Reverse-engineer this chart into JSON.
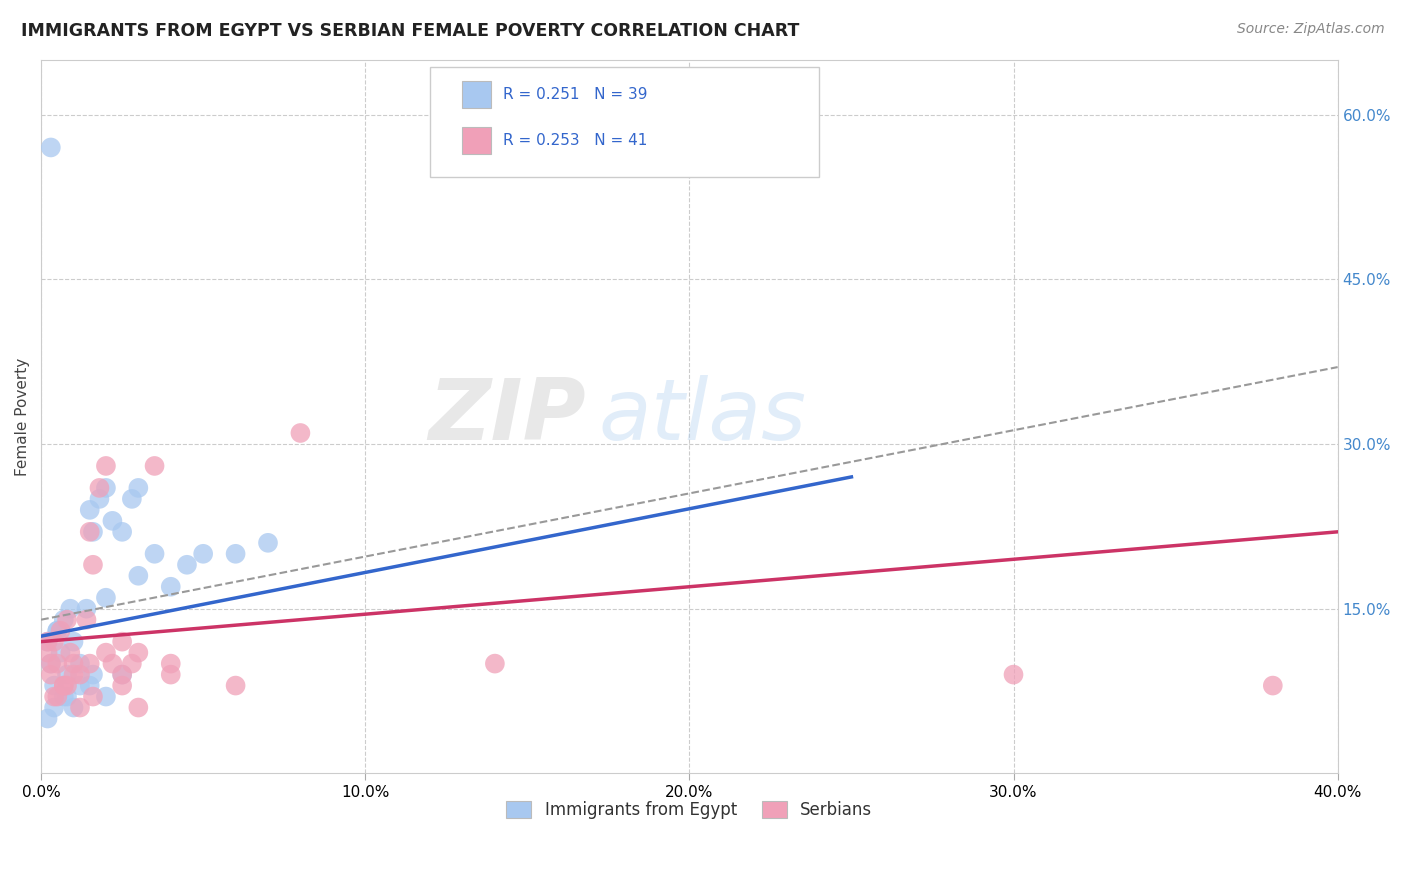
{
  "title": "IMMIGRANTS FROM EGYPT VS SERBIAN FEMALE POVERTY CORRELATION CHART",
  "source": "Source: ZipAtlas.com",
  "ylabel": "Female Poverty",
  "xlim": [
    0.0,
    40.0
  ],
  "ylim": [
    0.0,
    65.0
  ],
  "xticks": [
    0.0,
    10.0,
    20.0,
    30.0,
    40.0
  ],
  "xticklabels": [
    "0.0%",
    "10.0%",
    "20.0%",
    "30.0%",
    "40.0%"
  ],
  "yticks_right": [
    15.0,
    30.0,
    45.0,
    60.0
  ],
  "ytick_labels_right": [
    "15.0%",
    "30.0%",
    "45.0%",
    "60.0%"
  ],
  "legend_labels": [
    "Immigrants from Egypt",
    "Serbians"
  ],
  "legend_R": [
    "R = 0.251",
    "R = 0.253"
  ],
  "legend_N": [
    "N = 39",
    "N = 41"
  ],
  "blue_color": "#A8C8F0",
  "pink_color": "#F0A0B8",
  "blue_line_color": "#3366CC",
  "pink_line_color": "#CC3366",
  "dash_line_color": "#999999",
  "watermark": "ZIPatlas",
  "blue_scatter_x": [
    0.2,
    0.3,
    0.4,
    0.5,
    0.6,
    0.7,
    0.8,
    0.9,
    1.0,
    1.2,
    1.4,
    1.5,
    1.6,
    1.8,
    2.0,
    2.2,
    2.5,
    2.8,
    3.0,
    3.5,
    4.0,
    4.5,
    5.0,
    6.0,
    7.0,
    0.3,
    0.5,
    0.7,
    1.0,
    1.5,
    2.0,
    2.5,
    3.0,
    0.2,
    0.4,
    0.8,
    1.2,
    1.6,
    2.0
  ],
  "blue_scatter_y": [
    12.0,
    10.0,
    8.0,
    13.0,
    11.0,
    14.0,
    9.0,
    15.0,
    12.0,
    10.0,
    15.0,
    24.0,
    22.0,
    25.0,
    26.0,
    23.0,
    22.0,
    25.0,
    26.0,
    20.0,
    17.0,
    19.0,
    20.0,
    20.0,
    21.0,
    57.0,
    13.0,
    7.0,
    6.0,
    8.0,
    7.0,
    9.0,
    18.0,
    5.0,
    6.0,
    7.0,
    8.0,
    9.0,
    16.0
  ],
  "pink_scatter_x": [
    0.2,
    0.3,
    0.4,
    0.5,
    0.6,
    0.7,
    0.8,
    0.9,
    1.0,
    1.2,
    1.4,
    1.5,
    1.6,
    1.8,
    2.0,
    2.2,
    2.5,
    2.8,
    3.0,
    3.5,
    4.0,
    6.0,
    8.0,
    14.0,
    30.0,
    38.0,
    0.3,
    0.5,
    0.7,
    1.0,
    1.5,
    2.0,
    2.5,
    3.0,
    0.2,
    0.4,
    0.8,
    1.2,
    1.6,
    2.5,
    4.0
  ],
  "pink_scatter_y": [
    11.0,
    9.0,
    12.0,
    10.0,
    13.0,
    8.0,
    14.0,
    11.0,
    10.0,
    9.0,
    14.0,
    22.0,
    19.0,
    26.0,
    28.0,
    10.0,
    12.0,
    10.0,
    11.0,
    28.0,
    9.0,
    8.0,
    31.0,
    10.0,
    9.0,
    8.0,
    10.0,
    7.0,
    8.0,
    9.0,
    10.0,
    11.0,
    9.0,
    6.0,
    12.0,
    7.0,
    8.0,
    6.0,
    7.0,
    8.0,
    10.0
  ],
  "blue_line_x": [
    0.0,
    25.0
  ],
  "blue_line_y": [
    12.5,
    27.0
  ],
  "pink_line_x": [
    0.0,
    40.0
  ],
  "pink_line_y": [
    12.0,
    22.0
  ],
  "dash_line_x": [
    0.0,
    40.0
  ],
  "dash_line_y": [
    14.0,
    37.0
  ],
  "background_color": "#FFFFFF",
  "grid_color": "#CCCCCC"
}
